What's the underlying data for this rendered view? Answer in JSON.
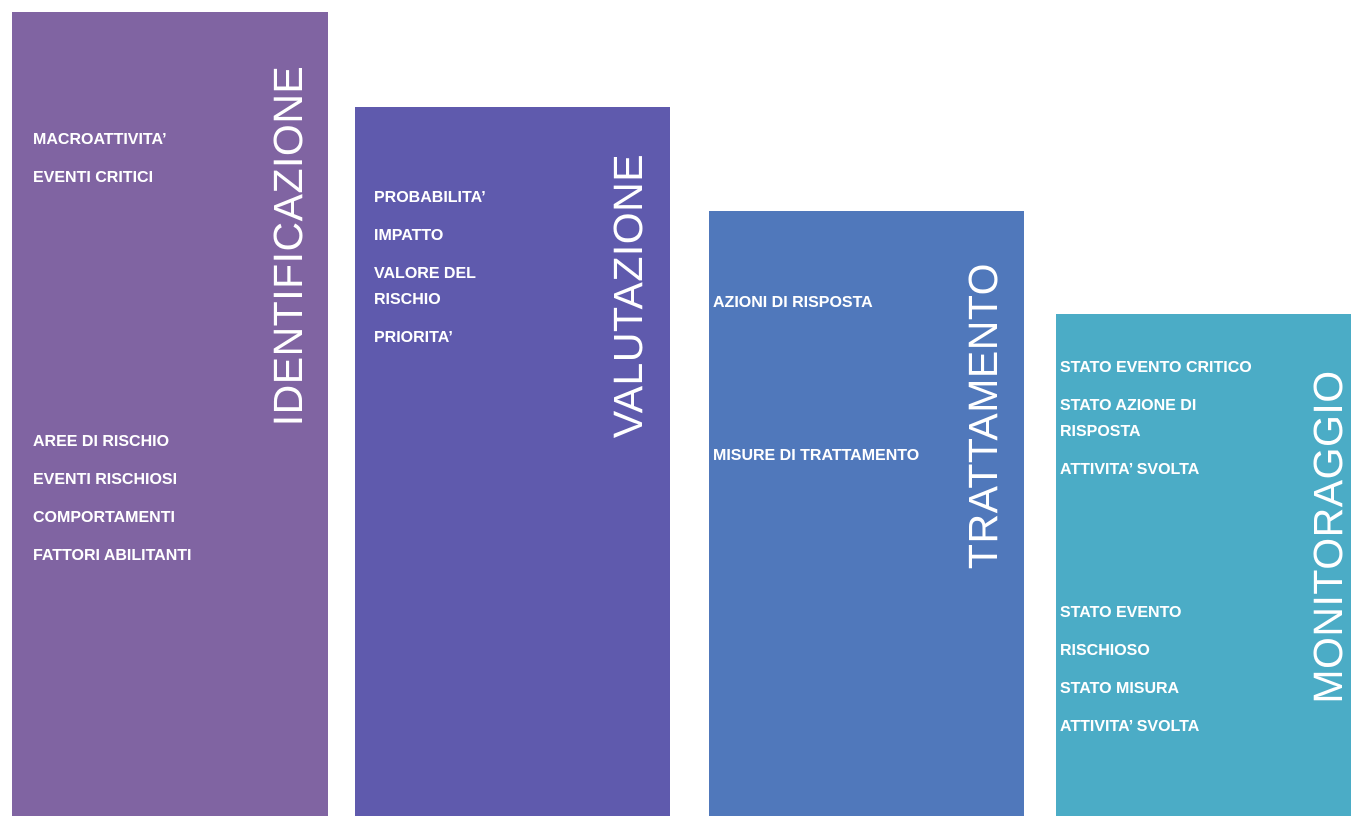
{
  "columns": [
    {
      "title": "IDENTIFICAZIONE",
      "groups": [
        [
          "MACROATTIVITA’",
          "EVENTI CRITICI"
        ],
        [
          "AREE DI RISCHIO",
          "EVENTI RISCHIOSI",
          "COMPORTAMENTI",
          "FATTORI ABILITANTI"
        ]
      ]
    },
    {
      "title": "VALUTAZIONE",
      "groups": [
        [
          "PROBABILITA’",
          "IMPATTO",
          "VALORE DEL RISCHIO",
          "PRIORITA’"
        ]
      ]
    },
    {
      "title": "TRATTAMENTO",
      "groups": [
        [
          "AZIONI DI RISPOSTA"
        ],
        [
          "MISURE DI TRATTAMENTO"
        ]
      ]
    },
    {
      "title": "MONITORAGGIO",
      "groups": [
        [
          "STATO EVENTO CRITICO",
          "STATO AZIONE DI RISPOSTA",
          "ATTIVITA’ SVOLTA"
        ],
        [
          "STATO EVENTO",
          "RISCHIOSO",
          "STATO MISURA",
          "ATTIVITA’ SVOLTA"
        ]
      ]
    }
  ]
}
